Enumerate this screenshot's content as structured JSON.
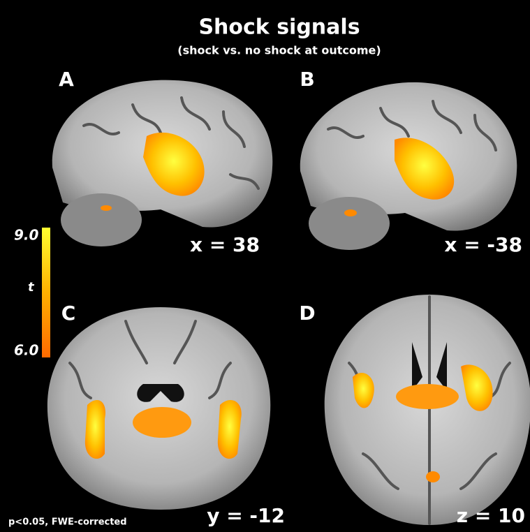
{
  "header": {
    "title": "Shock signals",
    "subtitle": "(shock vs. no shock at outcome)"
  },
  "panels": [
    {
      "label": "A",
      "coordinate": "x = 38"
    },
    {
      "label": "B",
      "coordinate": "x = -38"
    },
    {
      "label": "C",
      "coordinate": "y = -12"
    },
    {
      "label": "D",
      "coordinate": "z = 10"
    }
  ],
  "colorbar": {
    "max_label": "9.0",
    "min_label": "6.0",
    "variable": "t"
  },
  "footnote": "p<0.05, FWE-corrected"
}
